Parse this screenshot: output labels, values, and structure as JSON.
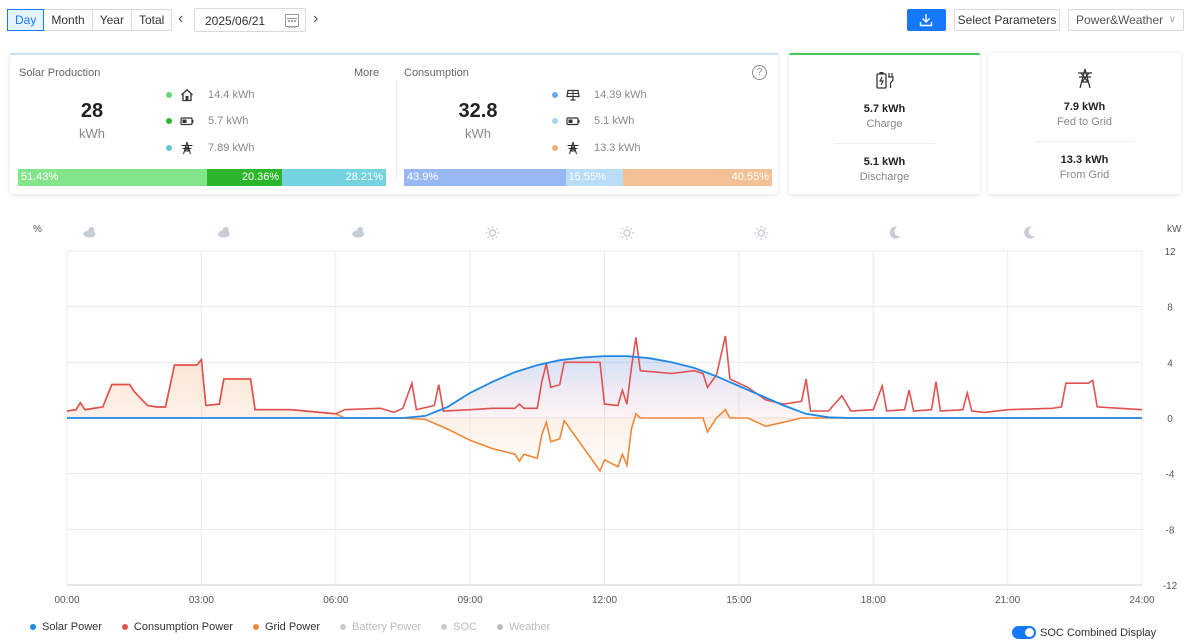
{
  "toolbar": {
    "period_tabs": [
      {
        "label": "Day",
        "active": true
      },
      {
        "label": "Month",
        "active": false
      },
      {
        "label": "Year",
        "active": false
      },
      {
        "label": "Total",
        "active": false
      }
    ],
    "date": "2025/06/21",
    "select_parameters": "Select Parameters",
    "view_select": "Power&Weather",
    "accent_color": "#1677ff"
  },
  "solar": {
    "title": "Solar Production",
    "more": "More",
    "total": "28",
    "unit": "kWh",
    "items": [
      {
        "icon": "house-icon",
        "color": "#5fd97a",
        "value": "14.4 kWh"
      },
      {
        "icon": "battery-icon",
        "color": "#2eb82e",
        "value": "5.7 kWh"
      },
      {
        "icon": "grid-tower-icon",
        "color": "#5fc8d4",
        "value": "7.89 kWh"
      }
    ],
    "bar": [
      {
        "label": "51.43%",
        "percent": 51.43,
        "color": "#82e58a",
        "align": "left"
      },
      {
        "label": "20.36%",
        "percent": 20.36,
        "color": "#2db52d",
        "align": "right"
      },
      {
        "label": "28.21%",
        "percent": 28.21,
        "color": "#74d3df",
        "align": "right"
      }
    ]
  },
  "consumption": {
    "title": "Consumption",
    "total": "32.8",
    "unit": "kWh",
    "items": [
      {
        "icon": "solar-panel-icon",
        "color": "#6fa6e8",
        "value": "14.39 kWh"
      },
      {
        "icon": "battery-icon",
        "color": "#aad4f5",
        "value": "5.1 kWh"
      },
      {
        "icon": "grid-tower-icon",
        "color": "#f2b27c",
        "value": "13.3 kWh"
      }
    ],
    "bar": [
      {
        "label": "43.9%",
        "percent": 43.9,
        "color": "#97b8f4",
        "align": "left"
      },
      {
        "label": "15.55%",
        "percent": 15.55,
        "color": "#b9dcf7",
        "align": "left"
      },
      {
        "label": "40.55%",
        "percent": 40.55,
        "color": "#f4c196",
        "align": "right"
      }
    ]
  },
  "battery": {
    "charge_value": "5.7 kWh",
    "charge_label": "Charge",
    "discharge_value": "5.1 kWh",
    "discharge_label": "Discharge"
  },
  "grid": {
    "fed_value": "7.9 kWh",
    "fed_label": "Fed to Grid",
    "from_value": "13.3 kWh",
    "from_label": "From Grid"
  },
  "chart_data": {
    "type": "line",
    "left_unit": "%",
    "right_unit": "kW",
    "y_ticks": [
      12,
      8,
      4,
      0,
      -4,
      -8,
      -12
    ],
    "ylim": [
      -12,
      12
    ],
    "xlim": [
      0,
      24
    ],
    "x_ticks": [
      "00:00",
      "03:00",
      "06:00",
      "09:00",
      "12:00",
      "15:00",
      "18:00",
      "21:00",
      "24:00"
    ],
    "weather": [
      "cloudy-icon",
      "cloudy-icon",
      "cloudy-icon",
      "sun-icon",
      "sun-icon",
      "sun-icon",
      "moon-icon",
      "moon-icon"
    ],
    "series": [
      {
        "name": "Solar Power",
        "color": "#1e88e5",
        "points": [
          [
            0,
            0
          ],
          [
            7.5,
            0
          ],
          [
            8,
            0.15
          ],
          [
            8.5,
            0.8
          ],
          [
            9,
            1.8
          ],
          [
            9.5,
            2.6
          ],
          [
            10,
            3.3
          ],
          [
            10.5,
            3.8
          ],
          [
            11,
            4.15
          ],
          [
            11.5,
            4.35
          ],
          [
            12,
            4.45
          ],
          [
            12.5,
            4.45
          ],
          [
            13,
            4.3
          ],
          [
            13.5,
            4.0
          ],
          [
            14,
            3.6
          ],
          [
            14.5,
            3.0
          ],
          [
            15,
            2.3
          ],
          [
            15.5,
            1.6
          ],
          [
            16,
            0.9
          ],
          [
            16.5,
            0.3
          ],
          [
            17,
            0.05
          ],
          [
            17.5,
            0
          ],
          [
            24,
            0
          ]
        ]
      },
      {
        "name": "Consumption Power",
        "color": "#e05252",
        "points": [
          [
            0,
            0.5
          ],
          [
            0.2,
            0.6
          ],
          [
            0.3,
            1.1
          ],
          [
            0.4,
            0.6
          ],
          [
            0.8,
            0.8
          ],
          [
            1,
            2.4
          ],
          [
            1.4,
            2.4
          ],
          [
            1.5,
            1.9
          ],
          [
            1.8,
            0.9
          ],
          [
            2,
            0.8
          ],
          [
            2.2,
            0.8
          ],
          [
            2.4,
            3.8
          ],
          [
            2.9,
            3.8
          ],
          [
            3.0,
            4.2
          ],
          [
            3.1,
            0.9
          ],
          [
            3.4,
            1.0
          ],
          [
            3.5,
            2.8
          ],
          [
            4.1,
            2.8
          ],
          [
            4.2,
            0.6
          ],
          [
            5,
            0.6
          ],
          [
            6,
            0.3
          ],
          [
            6.2,
            0.6
          ],
          [
            7,
            0.7
          ],
          [
            7.3,
            0.4
          ],
          [
            7.5,
            0.7
          ],
          [
            7.7,
            2.5
          ],
          [
            7.8,
            0.6
          ],
          [
            8.2,
            0.9
          ],
          [
            8.3,
            2.4
          ],
          [
            8.4,
            0.5
          ],
          [
            9,
            0.6
          ],
          [
            9.5,
            0.7
          ],
          [
            10,
            0.7
          ],
          [
            10.1,
            1.0
          ],
          [
            10.2,
            0.7
          ],
          [
            10.5,
            0.7
          ],
          [
            10.6,
            2.6
          ],
          [
            10.7,
            3.9
          ],
          [
            10.8,
            2.2
          ],
          [
            11,
            2.4
          ],
          [
            11.1,
            4.0
          ],
          [
            11.9,
            4.0
          ],
          [
            12,
            1.0
          ],
          [
            12.3,
            0.9
          ],
          [
            12.4,
            2.0
          ],
          [
            12.5,
            1.0
          ],
          [
            12.6,
            3.6
          ],
          [
            12.7,
            5.8
          ],
          [
            12.8,
            3.4
          ],
          [
            13.5,
            3.2
          ],
          [
            14,
            3.4
          ],
          [
            14.2,
            3.2
          ],
          [
            14.3,
            2.2
          ],
          [
            14.5,
            3.1
          ],
          [
            14.7,
            5.9
          ],
          [
            14.8,
            2.8
          ],
          [
            15.2,
            2.2
          ],
          [
            15.6,
            1.3
          ],
          [
            16,
            1.0
          ],
          [
            16.4,
            1.2
          ],
          [
            16.5,
            2.8
          ],
          [
            16.6,
            0.5
          ],
          [
            17,
            0.5
          ],
          [
            17.3,
            1.6
          ],
          [
            17.5,
            0.5
          ],
          [
            18,
            0.6
          ],
          [
            18.2,
            2.3
          ],
          [
            18.3,
            0.5
          ],
          [
            18.7,
            0.6
          ],
          [
            18.8,
            2.0
          ],
          [
            18.9,
            0.5
          ],
          [
            19.3,
            0.6
          ],
          [
            19.4,
            2.6
          ],
          [
            19.5,
            0.5
          ],
          [
            20,
            0.6
          ],
          [
            20.1,
            1.8
          ],
          [
            20.2,
            0.5
          ],
          [
            20.5,
            0.4
          ],
          [
            21,
            0.6
          ],
          [
            22,
            0.7
          ],
          [
            22.2,
            0.8
          ],
          [
            22.3,
            2.5
          ],
          [
            22.8,
            2.5
          ],
          [
            22.9,
            2.7
          ],
          [
            23,
            0.8
          ],
          [
            23.5,
            0.7
          ],
          [
            24,
            0.6
          ]
        ]
      },
      {
        "name": "Grid Power",
        "color": "#f0883a",
        "points": [
          [
            0,
            0.5
          ],
          [
            0.2,
            0.6
          ],
          [
            0.3,
            1.1
          ],
          [
            0.4,
            0.6
          ],
          [
            0.8,
            0.8
          ],
          [
            1,
            2.4
          ],
          [
            1.4,
            2.4
          ],
          [
            1.5,
            1.9
          ],
          [
            1.8,
            0.9
          ],
          [
            2,
            0.8
          ],
          [
            2.2,
            0.8
          ],
          [
            2.4,
            3.8
          ],
          [
            2.9,
            3.8
          ],
          [
            3.0,
            4.2
          ],
          [
            3.1,
            0.9
          ],
          [
            3.4,
            1.0
          ],
          [
            3.5,
            2.8
          ],
          [
            4.1,
            2.8
          ],
          [
            4.2,
            0.6
          ],
          [
            5,
            0.6
          ],
          [
            6,
            0.3
          ],
          [
            6.2,
            0
          ],
          [
            7.5,
            0
          ],
          [
            8,
            -0.1
          ],
          [
            8.5,
            -0.8
          ],
          [
            9,
            -1.6
          ],
          [
            9.5,
            -2.2
          ],
          [
            10,
            -2.6
          ],
          [
            10.1,
            -3.1
          ],
          [
            10.2,
            -2.6
          ],
          [
            10.5,
            -2.9
          ],
          [
            10.6,
            -1.2
          ],
          [
            10.7,
            -0.3
          ],
          [
            10.8,
            -1.7
          ],
          [
            11,
            -1.5
          ],
          [
            11.1,
            -0.2
          ],
          [
            11.9,
            -3.8
          ],
          [
            12,
            -3.0
          ],
          [
            12.3,
            -3.5
          ],
          [
            12.4,
            -2.6
          ],
          [
            12.5,
            -3.4
          ],
          [
            12.6,
            -0.8
          ],
          [
            12.7,
            0.3
          ],
          [
            12.8,
            0
          ],
          [
            14.2,
            0
          ],
          [
            14.3,
            -1.0
          ],
          [
            14.5,
            0
          ],
          [
            14.7,
            0.6
          ],
          [
            14.8,
            0
          ],
          [
            15.2,
            0
          ],
          [
            15.6,
            -0.6
          ],
          [
            16,
            -0.3
          ],
          [
            16.4,
            0
          ],
          [
            24,
            0
          ]
        ]
      },
      {
        "name": "Battery Power",
        "color": "#cccccc",
        "hidden": true
      },
      {
        "name": "SOC",
        "color": "#cccccc",
        "hidden": true
      },
      {
        "name": "Weather",
        "color": "#bbbbbb",
        "hidden": true
      }
    ],
    "grid": true,
    "legend_position": "bottom-left"
  },
  "soc_combined": "SOC Combined Display"
}
